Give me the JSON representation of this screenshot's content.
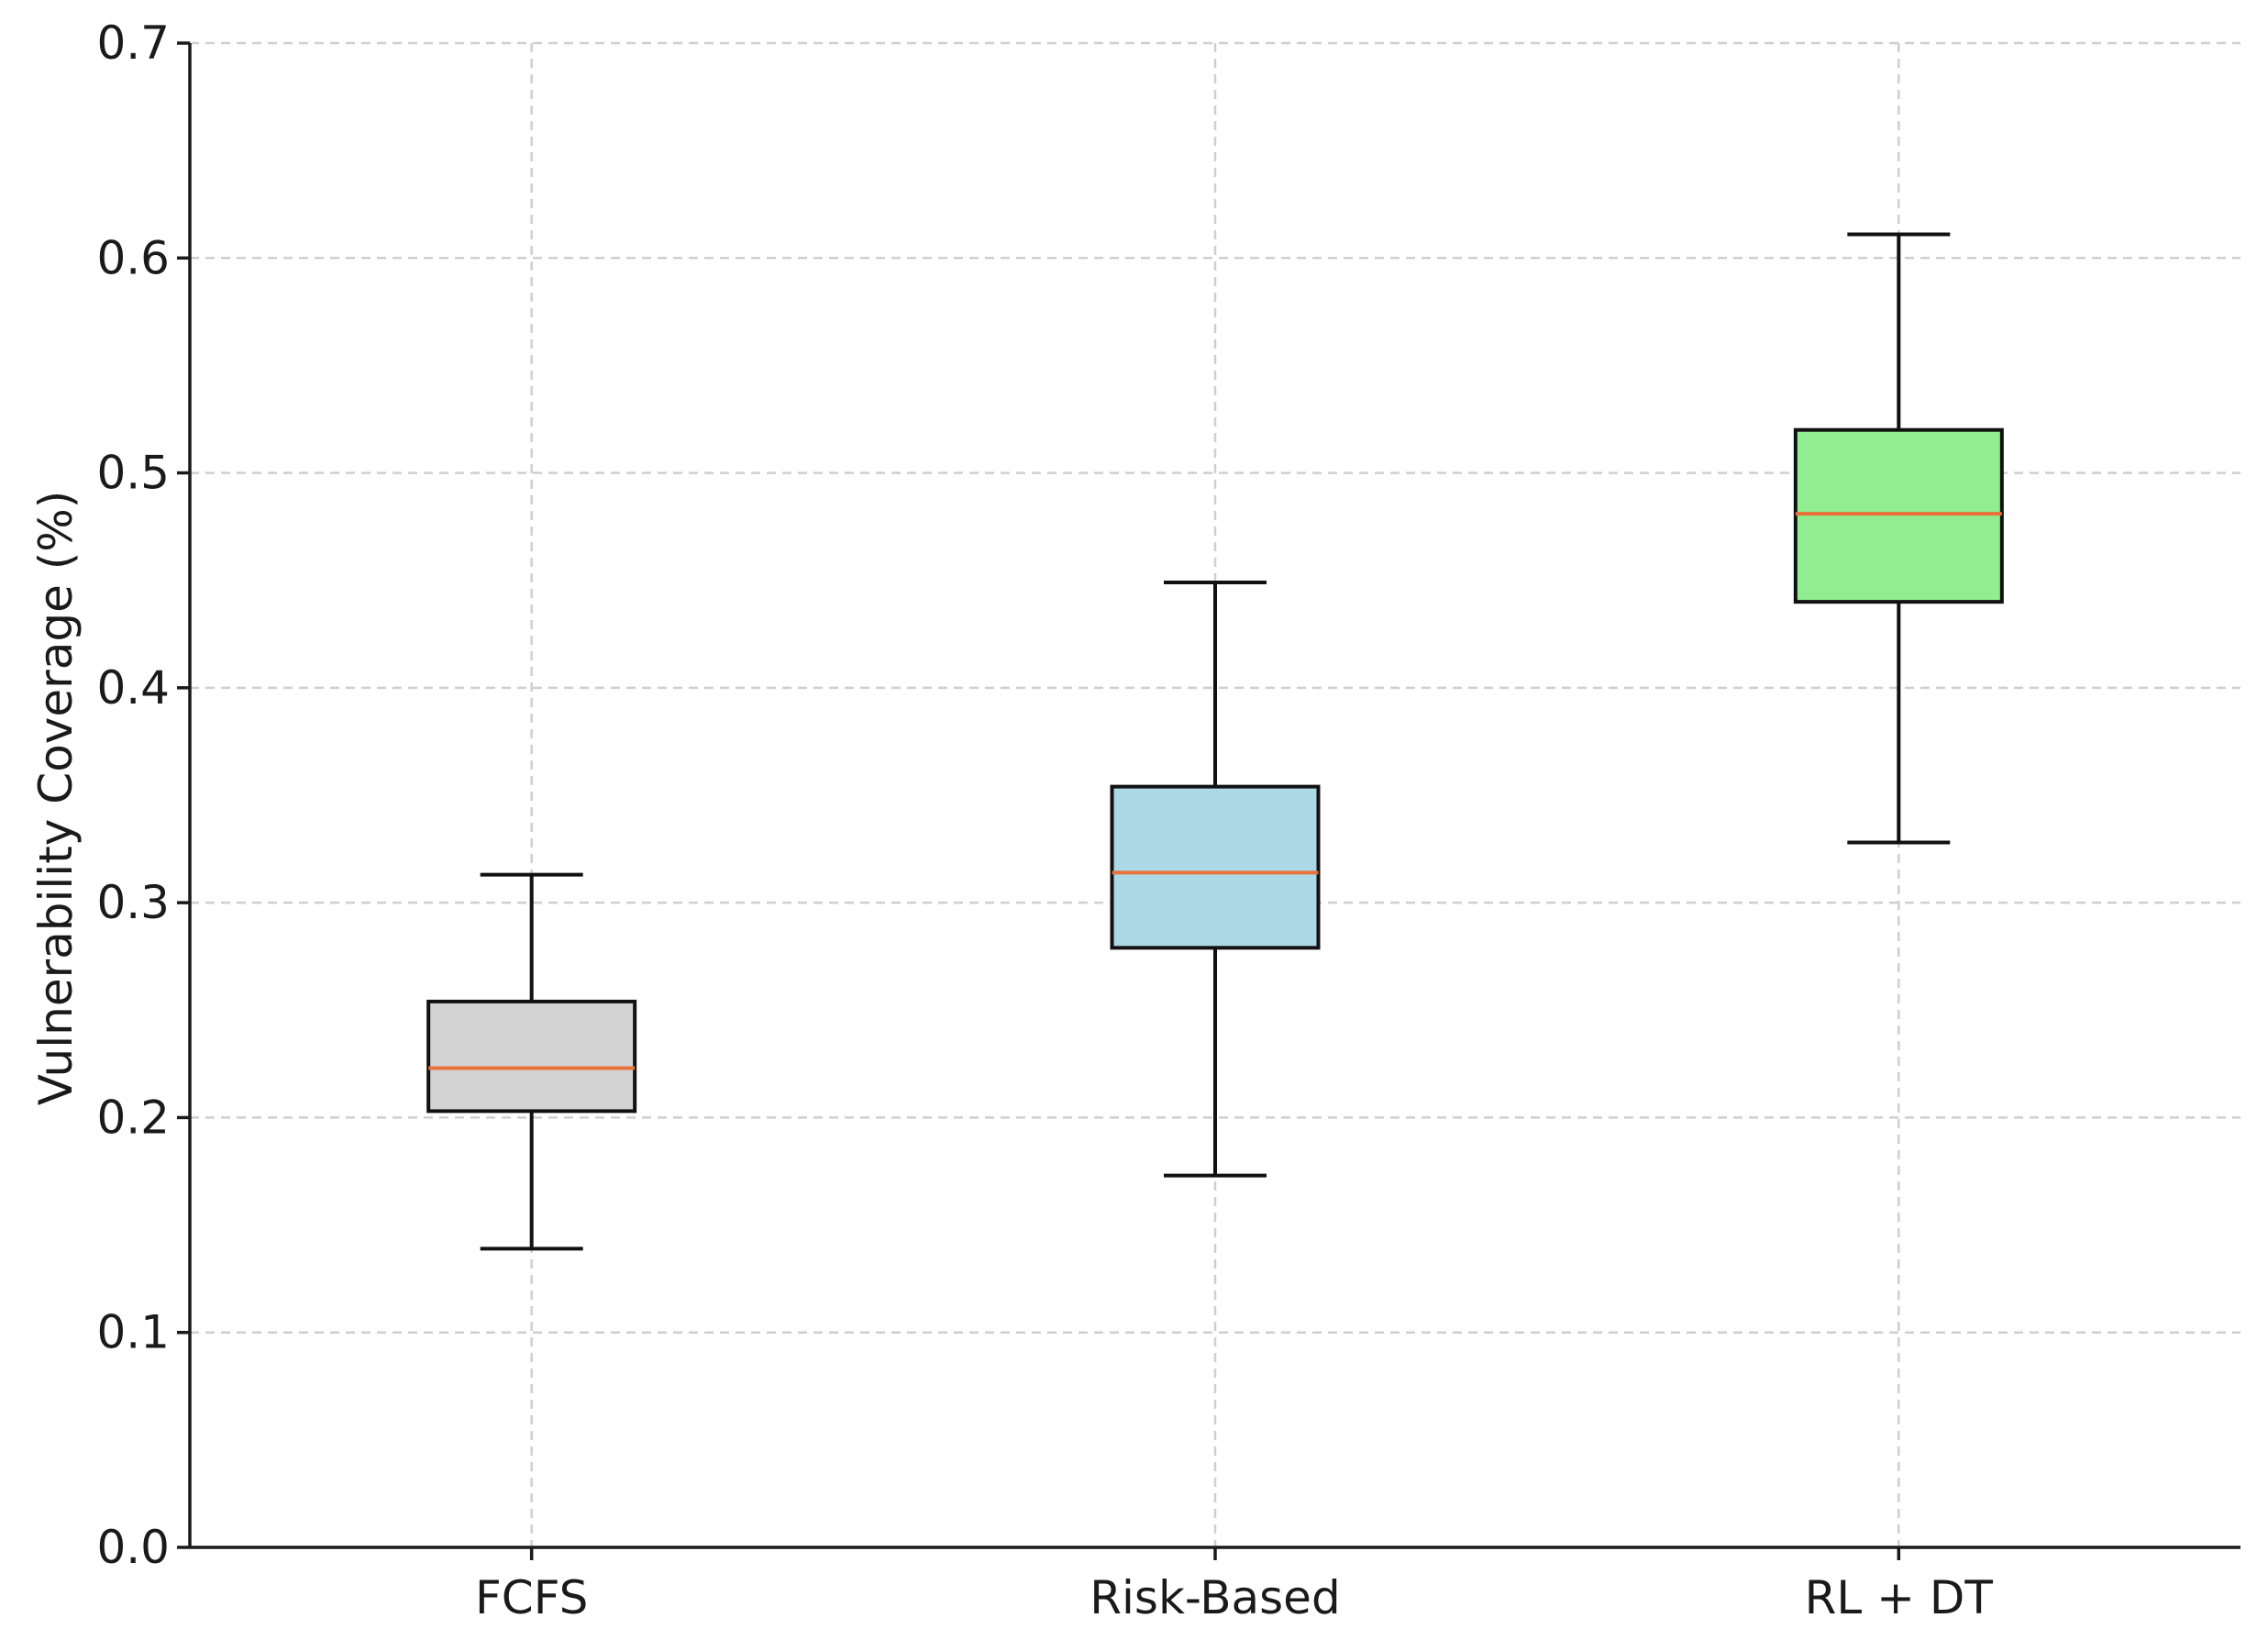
{
  "chart_data": {
    "type": "boxplot",
    "title": "",
    "xlabel": "",
    "ylabel": "Vulnerability Coverage (%)",
    "ylim": [
      0.0,
      0.7
    ],
    "yticks": [
      "0.0",
      "0.1",
      "0.2",
      "0.3",
      "0.4",
      "0.5",
      "0.6",
      "0.7"
    ],
    "grid": true,
    "median_color": "#e8713a",
    "categories": [
      "FCFS",
      "Risk-Based",
      "RL + DT"
    ],
    "boxes": [
      {
        "name": "FCFS",
        "whisker_low": 0.139,
        "q1": 0.203,
        "median": 0.223,
        "q3": 0.254,
        "whisker_high": 0.313,
        "color": "#d3d3d3"
      },
      {
        "name": "Risk-Based",
        "whisker_low": 0.173,
        "q1": 0.279,
        "median": 0.314,
        "q3": 0.354,
        "whisker_high": 0.449,
        "color": "#add8e6"
      },
      {
        "name": "RL + DT",
        "whisker_low": 0.328,
        "q1": 0.44,
        "median": 0.481,
        "q3": 0.52,
        "whisker_high": 0.611,
        "color": "#90ee90"
      }
    ]
  }
}
